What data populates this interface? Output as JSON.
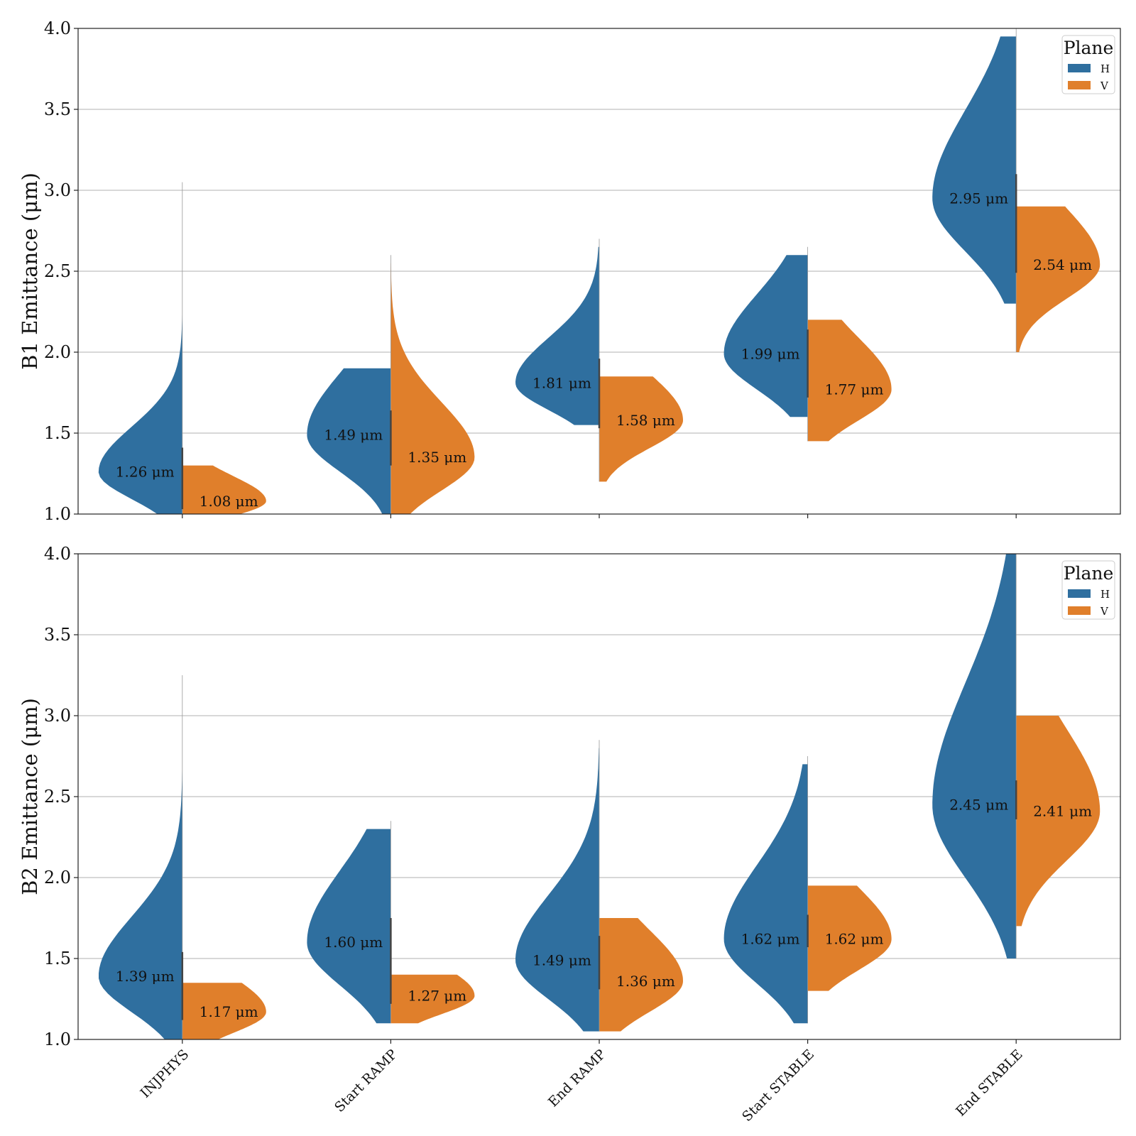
{
  "colors": {
    "H": "#2f6f9f",
    "V": "#e07f2b",
    "median_line": "#444444"
  },
  "chart_data": [
    {
      "type": "violin",
      "ylabel": "B1 Emittance (μm)",
      "ylim": [
        1.0,
        4.0
      ],
      "yticks": [
        "1.0",
        "1.5",
        "2.0",
        "2.5",
        "3.0",
        "3.5",
        "4.0"
      ],
      "categories": [
        "INJPHYS",
        "Start RAMP",
        "End RAMP",
        "Start STABLE",
        "End STABLE"
      ],
      "legend": {
        "title": "Plane",
        "entries": [
          "H",
          "V"
        ],
        "position": "top-right"
      },
      "series": [
        {
          "name": "H",
          "medians": [
            1.26,
            1.49,
            1.81,
            1.99,
            2.95
          ],
          "labels": [
            "1.26 μm",
            "1.49 μm",
            "1.81 μm",
            "1.99 μm",
            "2.95 μm"
          ],
          "ranges": [
            [
              1.0,
              3.0
            ],
            [
              1.0,
              1.9
            ],
            [
              1.55,
              2.65
            ],
            [
              1.6,
              2.6
            ],
            [
              2.3,
              3.95
            ]
          ]
        },
        {
          "name": "V",
          "medians": [
            1.08,
            1.35,
            1.58,
            1.77,
            2.54
          ],
          "labels": [
            "1.08 μm",
            "1.35 μm",
            "1.58 μm",
            "1.77 μm",
            "2.54 μm"
          ],
          "ranges": [
            [
              1.0,
              1.3
            ],
            [
              1.0,
              2.55
            ],
            [
              1.2,
              1.85
            ],
            [
              1.45,
              2.2
            ],
            [
              2.0,
              2.9
            ]
          ]
        }
      ]
    },
    {
      "type": "violin",
      "ylabel": "B2 Emittance (μm)",
      "ylim": [
        1.0,
        4.0
      ],
      "yticks": [
        "1.0",
        "1.5",
        "2.0",
        "2.5",
        "3.0",
        "3.5",
        "4.0"
      ],
      "categories": [
        "INJPHYS",
        "Start RAMP",
        "End RAMP",
        "Start STABLE",
        "End STABLE"
      ],
      "legend": {
        "title": "Plane",
        "entries": [
          "H",
          "V"
        ],
        "position": "top-right"
      },
      "series": [
        {
          "name": "H",
          "medians": [
            1.39,
            1.6,
            1.49,
            1.62,
            2.45
          ],
          "labels": [
            "1.39 μm",
            "1.60 μm",
            "1.49 μm",
            "1.62 μm",
            "2.45 μm"
          ],
          "ranges": [
            [
              1.0,
              3.2
            ],
            [
              1.1,
              2.3
            ],
            [
              1.05,
              2.8
            ],
            [
              1.1,
              2.7
            ],
            [
              1.5,
              4.0
            ]
          ]
        },
        {
          "name": "V",
          "medians": [
            1.17,
            1.27,
            1.36,
            1.62,
            2.41
          ],
          "labels": [
            "1.17 μm",
            "1.27 μm",
            "1.36 μm",
            "1.62 μm",
            "2.41 μm"
          ],
          "ranges": [
            [
              1.0,
              1.35
            ],
            [
              1.1,
              1.4
            ],
            [
              1.05,
              1.75
            ],
            [
              1.3,
              1.95
            ],
            [
              1.7,
              3.0
            ]
          ]
        }
      ]
    }
  ]
}
